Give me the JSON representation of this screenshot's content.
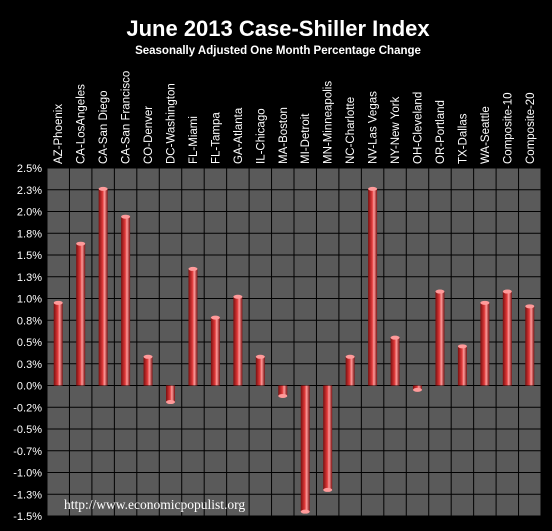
{
  "chart_data": {
    "type": "bar",
    "title": "June 2013 Case-Shiller Index",
    "subtitle": "Seasonally Adjusted One Month Percentage Change",
    "categories": [
      "AZ-Phoenix",
      "CA-LosAngeles",
      "CA-San Diego",
      "CA-San Francisco",
      "CO-Denver",
      "DC-Washington",
      "FL-Miami",
      "FL-Tampa",
      "GA-Atlanta",
      "IL-Chicago",
      "MA-Boston",
      "MI-Detroit",
      "MN-Minneapolis",
      "NC-Charlotte",
      "NV-Las Vegas",
      "NY-New York",
      "OH-Cleveland",
      "OR-Portland",
      "TX-Dallas",
      "WA-Seattle",
      "Composite-10",
      "Composite-20"
    ],
    "series": [
      {
        "values": [
          0.95,
          1.63,
          2.26,
          1.94,
          0.33,
          -0.19,
          1.34,
          0.78,
          1.02,
          0.33,
          -0.12,
          -1.45,
          -1.2,
          0.33,
          2.26,
          0.55,
          -0.05,
          1.08,
          0.45,
          0.95,
          1.08,
          0.91
        ]
      }
    ],
    "y_ticks": [
      "2.5%",
      "2.3%",
      "2.0%",
      "1.8%",
      "1.5%",
      "1.3%",
      "1.0%",
      "0.8%",
      "0.5%",
      "0.3%",
      "0.0%",
      "-0.2%",
      "-0.5%",
      "-0.7%",
      "-1.0%",
      "-1.3%",
      "-1.5%"
    ],
    "ylim": [
      -1.5,
      2.5
    ],
    "xlabel": "",
    "ylabel": "",
    "grid": true,
    "legend": "none",
    "colors": {
      "background": "#000000",
      "plot_area": "#5a5a5a",
      "grid": "#000000",
      "bar_dark": "#7a0f0f",
      "bar_mid": "#e03a3a",
      "bar_light": "#ff9a9a",
      "text": "#ffffff"
    }
  },
  "watermark": "http://www.economicpopulist.org"
}
